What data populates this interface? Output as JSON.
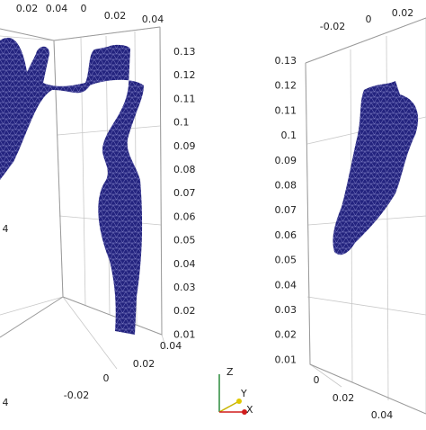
{
  "left_panel": {
    "top_ticks": [
      "0.02",
      "0.04",
      "0",
      "0.02",
      "0.04"
    ],
    "z_ticks": [
      "0.13",
      "0.12",
      "0.11",
      "0.1",
      "0.09",
      "0.08",
      "0.07",
      "0.06",
      "0.05",
      "0.04",
      "0.03",
      "0.02",
      "0.01"
    ],
    "bottom_ticks": [
      "0.04",
      "0.02",
      "0",
      "-0.02"
    ],
    "edge_labels": [
      "4",
      "4"
    ]
  },
  "right_panel": {
    "top_ticks": [
      "-0.02",
      "0",
      "0.02"
    ],
    "z_ticks": [
      "0.13",
      "0.12",
      "0.11",
      "0.1",
      "0.09",
      "0.08",
      "0.07",
      "0.06",
      "0.05",
      "0.04",
      "0.03",
      "0.02",
      "0.01"
    ],
    "bottom_ticks": [
      "0",
      "0.02",
      "0.04"
    ]
  },
  "axes_triad": {
    "z": "Z",
    "y": "Y",
    "x": "X"
  }
}
